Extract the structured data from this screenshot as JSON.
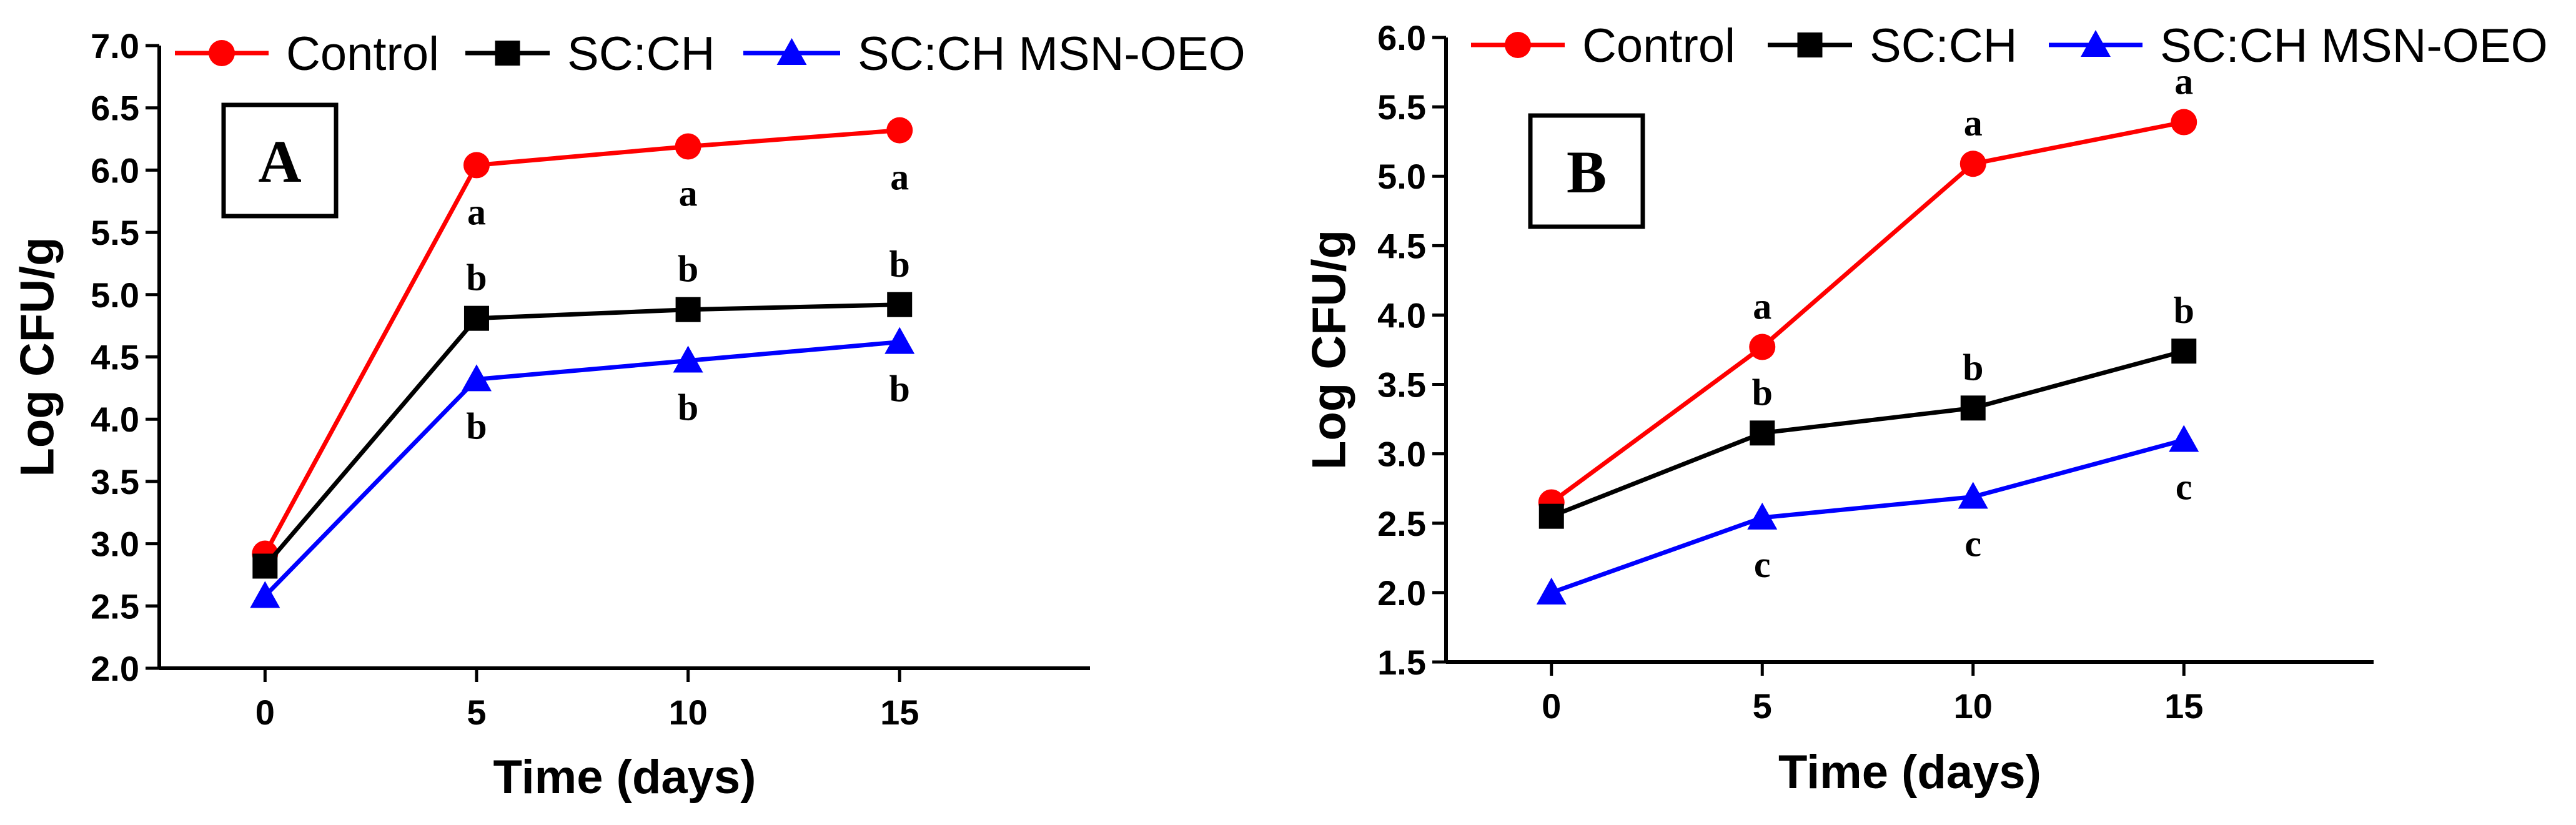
{
  "chart_data": [
    {
      "type": "line",
      "panel_label": "A",
      "xlabel": "Time (days)",
      "ylabel": "Log CFU/g",
      "x": [
        0,
        5,
        10,
        15
      ],
      "xlim": [
        -2.5,
        19.5
      ],
      "ylim": [
        2.0,
        7.0
      ],
      "x_ticks": [
        "0",
        "5",
        "10",
        "15"
      ],
      "y_ticks": [
        "2.0",
        "2.5",
        "3.0",
        "3.5",
        "4.0",
        "4.5",
        "5.0",
        "5.5",
        "6.0",
        "6.5",
        "7.0"
      ],
      "grid": false,
      "legend_position": "top",
      "series": [
        {
          "name": "Control",
          "color": "#ff0000",
          "marker": "circle",
          "values": [
            2.92,
            6.04,
            6.19,
            6.32
          ],
          "labels": [
            "",
            "a",
            "a",
            "a"
          ],
          "label_side": [
            "",
            "below",
            "below",
            "below"
          ]
        },
        {
          "name": "SC:CH",
          "color": "#000000",
          "marker": "square",
          "values": [
            2.82,
            4.81,
            4.88,
            4.92
          ],
          "labels": [
            "",
            "b",
            "b",
            "b"
          ],
          "label_side": [
            "",
            "above",
            "above",
            "above"
          ]
        },
        {
          "name": "SC:CH MSN-OEO",
          "color": "#0000ff",
          "marker": "triangle",
          "values": [
            2.58,
            4.32,
            4.47,
            4.62
          ],
          "labels": [
            "",
            "b",
            "b",
            "b"
          ],
          "label_side": [
            "",
            "below",
            "below",
            "below"
          ]
        }
      ]
    },
    {
      "type": "line",
      "panel_label": "B",
      "xlabel": "Time (days)",
      "ylabel": "Log CFU/g",
      "x": [
        0,
        5,
        10,
        15
      ],
      "xlim": [
        -2.5,
        19.5
      ],
      "ylim": [
        1.5,
        6.0
      ],
      "x_ticks": [
        "0",
        "5",
        "10",
        "15"
      ],
      "y_ticks": [
        "1.5",
        "2.0",
        "2.5",
        "3.0",
        "3.5",
        "4.0",
        "4.5",
        "5.0",
        "5.5",
        "6.0"
      ],
      "grid": false,
      "legend_position": "top",
      "series": [
        {
          "name": "Control",
          "color": "#ff0000",
          "marker": "circle",
          "values": [
            2.65,
            3.77,
            5.09,
            5.39
          ],
          "labels": [
            "",
            "a",
            "a",
            "a"
          ],
          "label_side": [
            "",
            "above",
            "above",
            "above"
          ]
        },
        {
          "name": "SC:CH",
          "color": "#000000",
          "marker": "square",
          "values": [
            2.55,
            3.15,
            3.33,
            3.74
          ],
          "labels": [
            "",
            "b",
            "b",
            "b"
          ],
          "label_side": [
            "",
            "above",
            "above",
            "above"
          ]
        },
        {
          "name": "SC:CH MSN-OEO",
          "color": "#0000ff",
          "marker": "triangle",
          "values": [
            2.0,
            2.54,
            2.69,
            3.1
          ],
          "labels": [
            "",
            "c",
            "c",
            "c"
          ],
          "label_side": [
            "",
            "below",
            "below",
            "below"
          ]
        }
      ]
    }
  ]
}
